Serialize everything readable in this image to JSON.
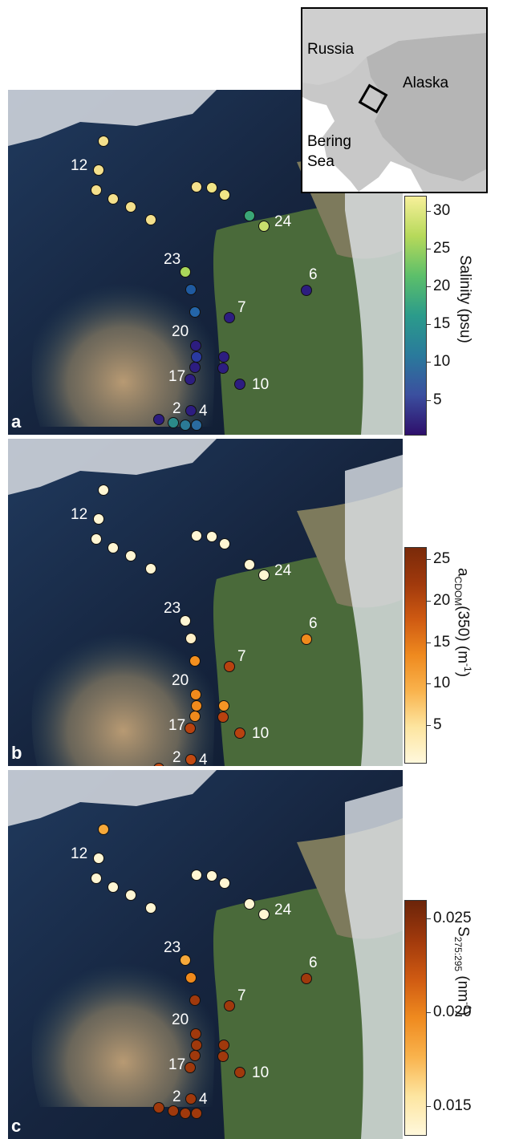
{
  "inset": {
    "labels": {
      "russia": "Russia",
      "alaska": "Alaska",
      "bering": "Bering",
      "sea": "Sea"
    }
  },
  "panels": [
    {
      "letter": "a",
      "variable": "salinity",
      "colorbar": {
        "title_main": "Salinity (psu)",
        "ticks": [
          "30",
          "25",
          "20",
          "15",
          "10",
          "5"
        ],
        "tick_values": [
          30,
          25,
          20,
          15,
          10,
          5
        ],
        "range": [
          0.5,
          32
        ],
        "colors": [
          "#2e0f6b",
          "#3b4f9f",
          "#2a7a9c",
          "#2b9b8b",
          "#5cbf6a",
          "#b6d95a",
          "#f7f09a"
        ]
      },
      "station_colors": [
        "#f4e08c",
        "#f4e08c",
        "#f4e08c",
        "#f4e08c",
        "#f4e08c",
        "#f4e08c",
        "#f4e08c",
        "#f2e586",
        "#f2e586",
        "#3aa676",
        "#c9e06d",
        "#a9d75a",
        "#1f5aa0",
        "#2465a8",
        "#2d1d80",
        "#2d1d80",
        "#2d1d80",
        "#2a3aa0",
        "#2d1d80",
        "#2d1d80",
        "#2d1d80",
        "#2d1d80",
        "#2d1d80",
        "#2d1d80",
        "#2b8a8a",
        "#2b7a95",
        "#2a6ba0",
        "#2d1d80"
      ]
    },
    {
      "letter": "b",
      "variable": "acdom350",
      "colorbar": {
        "title_main": "a",
        "title_sub": "CDOM",
        "title_rest": "(350) (m",
        "title_sup": "-1",
        "title_end": ")",
        "ticks": [
          "25",
          "20",
          "15",
          "10",
          "5"
        ],
        "tick_values": [
          25,
          20,
          15,
          10,
          5
        ],
        "range": [
          0.5,
          26.5
        ],
        "colors": [
          "#fff8dc",
          "#fde5a0",
          "#f9b34d",
          "#ef8a1f",
          "#cf5a12",
          "#a0390c",
          "#7a2a0a"
        ]
      },
      "station_colors": [
        "#fff6d3",
        "#fff6d3",
        "#fff6d3",
        "#fff6d3",
        "#fff6d3",
        "#fff6d3",
        "#fff6d3",
        "#fff6d3",
        "#fff6d3",
        "#fff6d3",
        "#fff6d3",
        "#fff6d3",
        "#fff0c8",
        "#f4901f",
        "#f08a1c",
        "#b8420f",
        "#f08a1c",
        "#f08a1c",
        "#f08a1c",
        "#f49524",
        "#b8420f",
        "#b8420f",
        "#b8420f",
        "#c24a12",
        "#f08a1c",
        "#f7a93a",
        "#d95a14",
        "#c24a12"
      ]
    },
    {
      "letter": "c",
      "variable": "s275_295",
      "colorbar": {
        "title_main": "S",
        "title_sub": "275:295",
        "title_rest": " (nm",
        "title_sup": "-1",
        "title_end": ")",
        "ticks": [
          "0.025",
          "0.020",
          "0.015"
        ],
        "tick_values": [
          0.025,
          0.02,
          0.015
        ],
        "range": [
          0.0135,
          0.026
        ],
        "colors": [
          "#fff8dc",
          "#fde5a0",
          "#f9b34d",
          "#ef8a1f",
          "#cf5a12",
          "#a0390c",
          "#6b240a"
        ]
      },
      "station_colors": [
        "#f7a93a",
        "#fff6d3",
        "#fff6d3",
        "#fff6d3",
        "#fff6d3",
        "#fff6d3",
        "#fff6d3",
        "#fff6d3",
        "#fff6d3",
        "#fff6d3",
        "#fff6d3",
        "#f7a93a",
        "#f08a1c",
        "#a0390c",
        "#a0390c",
        "#a0390c",
        "#a0390c",
        "#a0390c",
        "#a0390c",
        "#a0390c",
        "#a0390c",
        "#a0390c",
        "#a0390c",
        "#a0390c",
        "#a0390c",
        "#a0390c",
        "#a0390c",
        "#a0390c"
      ]
    }
  ],
  "station_labels": [
    "12",
    "24",
    "23",
    "6",
    "7",
    "20",
    "17",
    "10",
    "2",
    "4"
  ]
}
